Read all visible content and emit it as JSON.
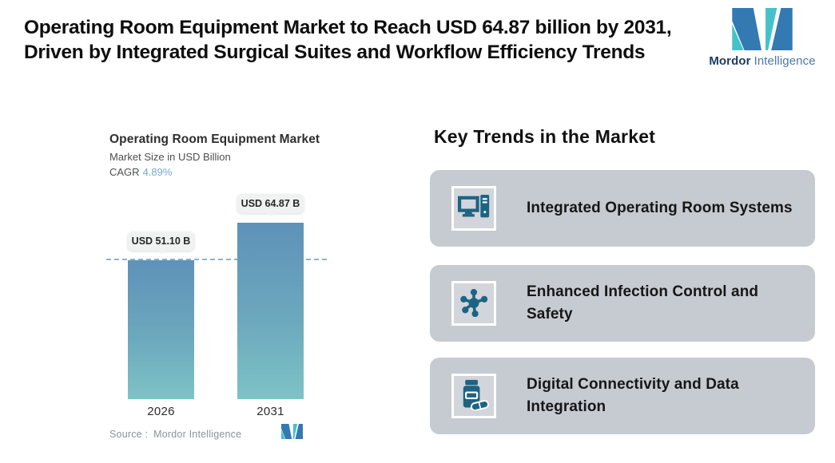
{
  "header": {
    "title": "Operating Room Equipment Market to Reach USD 64.87 billion by 2031, Driven by Integrated Surgical Suites and Workflow Efficiency Trends",
    "brand": {
      "name_bold": "Mordor",
      "name_light": "Intelligence"
    }
  },
  "chart": {
    "title": "Operating Room Equipment Market",
    "subtitle": "Market Size in USD Billion",
    "cagr_label": "CAGR",
    "cagr_value": "4.89%",
    "source_label": "Source :",
    "source_value": "Mordor Intelligence"
  },
  "chart_data": {
    "type": "bar",
    "title": "Operating Room Equipment Market",
    "ylabel": "Market Size in USD Billion",
    "cagr": "4.89%",
    "categories": [
      "2026",
      "2031"
    ],
    "values": [
      51.1,
      64.87
    ],
    "value_labels": [
      "USD 51.10 B",
      "USD 64.87 B"
    ],
    "reference_line": 51.1,
    "ylim": [
      0,
      70
    ],
    "grid": false,
    "legend": false,
    "bar_gradient": [
      "#5e92b8",
      "#7dc3c6"
    ]
  },
  "trends": {
    "heading": "Key Trends in the Market",
    "items": [
      {
        "icon": "desktop-computer-icon",
        "text": "Integrated Operating Room Systems"
      },
      {
        "icon": "molecule-icon",
        "text": "Enhanced Infection Control and Safety"
      },
      {
        "icon": "pill-bottle-icon",
        "text": "Digital Connectivity and Data Integration"
      }
    ]
  },
  "colors": {
    "bar_gradient_top": "#5e92b8",
    "bar_gradient_bottom": "#7dc3c6",
    "dashed_line": "#8fb3d1",
    "cagr_value": "#74aacb",
    "card_background": "#c6cad1",
    "icon": "#1d6383",
    "logo_blue": "#3379b2",
    "logo_teal": "#45c2c8"
  }
}
